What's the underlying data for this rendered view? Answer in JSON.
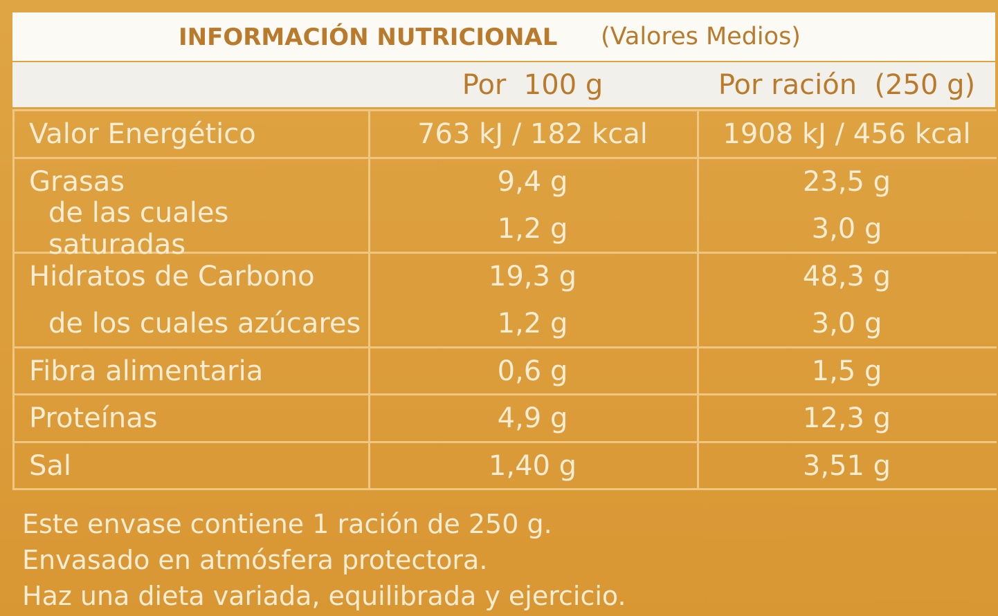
{
  "header": {
    "title": "INFORMACIÓN NUTRICIONAL",
    "subtitle": "(Valores Medios)",
    "columns": [
      "Por  100 g",
      "Por ración  (250 g)"
    ]
  },
  "table": {
    "rows": [
      [
        "Valor Energético",
        "763 kJ / 182 kcal",
        "1908 kJ / 456 kcal"
      ],
      [
        "Grasas",
        "9,4 g",
        "23,5 g"
      ],
      [
        "de las cuales saturadas",
        "1,2 g",
        "3,0 g"
      ],
      [
        "Hidratos de Carbono",
        "19,3 g",
        "48,3 g"
      ],
      [
        "de los cuales azúcares",
        "1,2 g",
        "3,0 g"
      ],
      [
        "Fibra alimentaria",
        "0,6 g",
        "1,5 g"
      ],
      [
        "Proteínas",
        "4,9 g",
        "12,3 g"
      ],
      [
        "Sal",
        "1,40 g",
        "3,51 g"
      ]
    ]
  },
  "notes": [
    "Este envase contiene 1 ración de 250 g.",
    "Envasado en atmósfera protectora.",
    "Haz una dieta variada, equilibrada y ejercicio."
  ]
}
